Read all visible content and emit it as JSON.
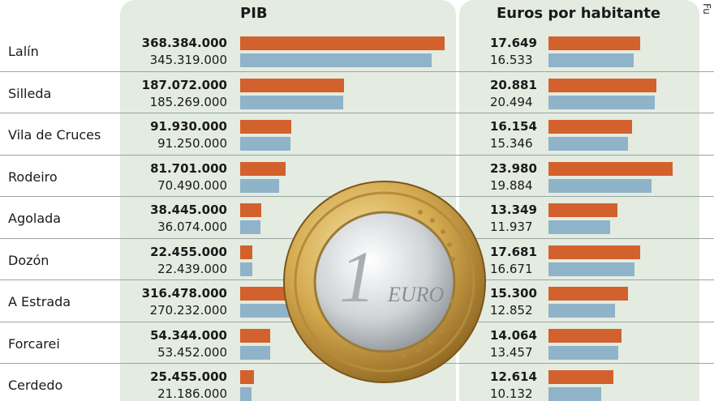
{
  "headers": {
    "pib": "PIB",
    "eur": "Euros por habitante",
    "source": "Fu"
  },
  "colors": {
    "current": "#d2612d",
    "previous": "#8fb3c8"
  },
  "coin": {
    "denomination": "1",
    "text": "EURO"
  },
  "chart_data": {
    "type": "bar",
    "categories": [
      "Lalín",
      "Silleda",
      "Vila de Cruces",
      "Rodeiro",
      "Agolada",
      "Dozón",
      "A Estrada",
      "Forcarei",
      "Cerdedo"
    ],
    "panels": [
      {
        "title": "PIB",
        "series": [
          {
            "values": [
              368384000,
              187072000,
              91930000,
              81701000,
              38445000,
              22455000,
              316478000,
              54344000,
              25455000
            ],
            "labels": [
              "368.384.000",
              "187.072.000",
              "91.930.000",
              "81.701.000",
              "38.445.000",
              "22.455.000",
              "316.478.000",
              "54.344.000",
              "25.455.000"
            ]
          },
          {
            "values": [
              345319000,
              185269000,
              91250000,
              70490000,
              36074000,
              22439000,
              270232000,
              53452000,
              21186000
            ],
            "labels": [
              "345.319.000",
              "185.269.000",
              "91.250.000",
              "70.490.000",
              "36.074.000",
              "22.439.000",
              "270.232.000",
              "53.452.000",
              "21.186.000"
            ]
          }
        ]
      },
      {
        "title": "Euros por habitante",
        "series": [
          {
            "values": [
              17649,
              20881,
              16154,
              23980,
              13349,
              17681,
              15300,
              14064,
              12614
            ],
            "labels": [
              "17.649",
              "20.881",
              "16.154",
              "23.980",
              "13.349",
              "17.681",
              "15.300",
              "14.064",
              "12.614"
            ]
          },
          {
            "values": [
              16533,
              20494,
              15346,
              19884,
              11937,
              16671,
              12852,
              13457,
              10132
            ],
            "labels": [
              "16.533",
              "20.494",
              "15.346",
              "19.884",
              "11.937",
              "16.671",
              "12.852",
              "13.457",
              "10.132"
            ]
          }
        ]
      }
    ]
  }
}
